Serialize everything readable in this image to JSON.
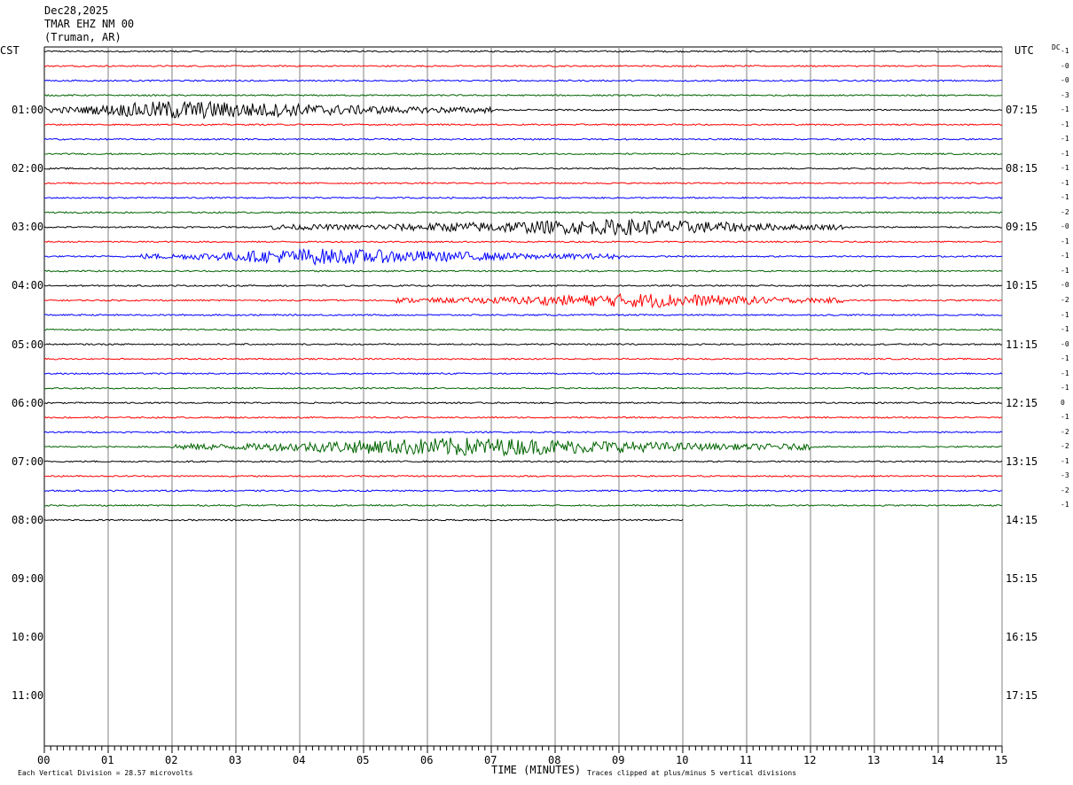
{
  "header": {
    "date": "Dec28,2025",
    "station": "TMAR EHZ NM 00",
    "location": "(Truman, AR)"
  },
  "left_tz": "CST",
  "right_tz": "UTC",
  "dc_label": "DC",
  "footer": {
    "time_label": "TIME (MINUTES)",
    "scale_note": "Each Vertical Division =   28.57 microvolts",
    "clip_note": "Traces clipped at plus/minus 5 vertical divisions"
  },
  "colors": {
    "black": "#000000",
    "red": "#ff0000",
    "blue": "#0000ff",
    "green": "#006400",
    "grid": "#808080"
  },
  "chart_data": {
    "type": "line",
    "title": "",
    "xlabel": "TIME (MINUTES)",
    "x_range": [
      0,
      15
    ],
    "x_ticks": [
      "00",
      "01",
      "02",
      "03",
      "04",
      "05",
      "06",
      "07",
      "08",
      "09",
      "10",
      "11",
      "12",
      "13",
      "14",
      "15"
    ],
    "left_hour_labels": [
      "01:00",
      "02:00",
      "03:00",
      "04:00",
      "05:00",
      "06:00",
      "07:00",
      "08:00",
      "09:00",
      "10:00",
      "11:00"
    ],
    "right_hour_labels": [
      "07:15",
      "08:15",
      "09:15",
      "10:15",
      "11:15",
      "12:15",
      "13:15",
      "14:15",
      "15:15",
      "16:15",
      "17:15"
    ],
    "trace_color_cycle": [
      "black",
      "red",
      "blue",
      "green"
    ],
    "num_traces": 33,
    "last_trace_end_minute": 10.0,
    "dc_offsets": [
      "-1",
      "-0",
      "-0",
      "-3",
      "-1",
      "-1",
      "-1",
      "-1",
      "-1",
      "-1",
      "-1",
      "-2",
      "-0",
      "-1",
      "-1",
      "-1",
      "-0",
      "-2",
      "-1",
      "-1",
      "-0",
      "-1",
      "-1",
      "-1",
      "0",
      "-1",
      "-2",
      "-2",
      "-1",
      "-3",
      "-2",
      "-1"
    ],
    "events": [
      {
        "trace": 4,
        "start_min": 0.0,
        "peak_min": 2.0,
        "end_min": 7.0,
        "amplitude": 3
      },
      {
        "trace": 12,
        "start_min": 3.5,
        "peak_min": 9.3,
        "end_min": 12.5,
        "amplitude": 2.5
      },
      {
        "trace": 14,
        "start_min": 1.5,
        "peak_min": 4.2,
        "end_min": 9.0,
        "amplitude": 2.5
      },
      {
        "trace": 17,
        "start_min": 5.5,
        "peak_min": 9.5,
        "end_min": 12.5,
        "amplitude": 2.2
      },
      {
        "trace": 27,
        "start_min": 2.0,
        "peak_min": 6.5,
        "end_min": 12.0,
        "amplitude": 3
      }
    ]
  }
}
